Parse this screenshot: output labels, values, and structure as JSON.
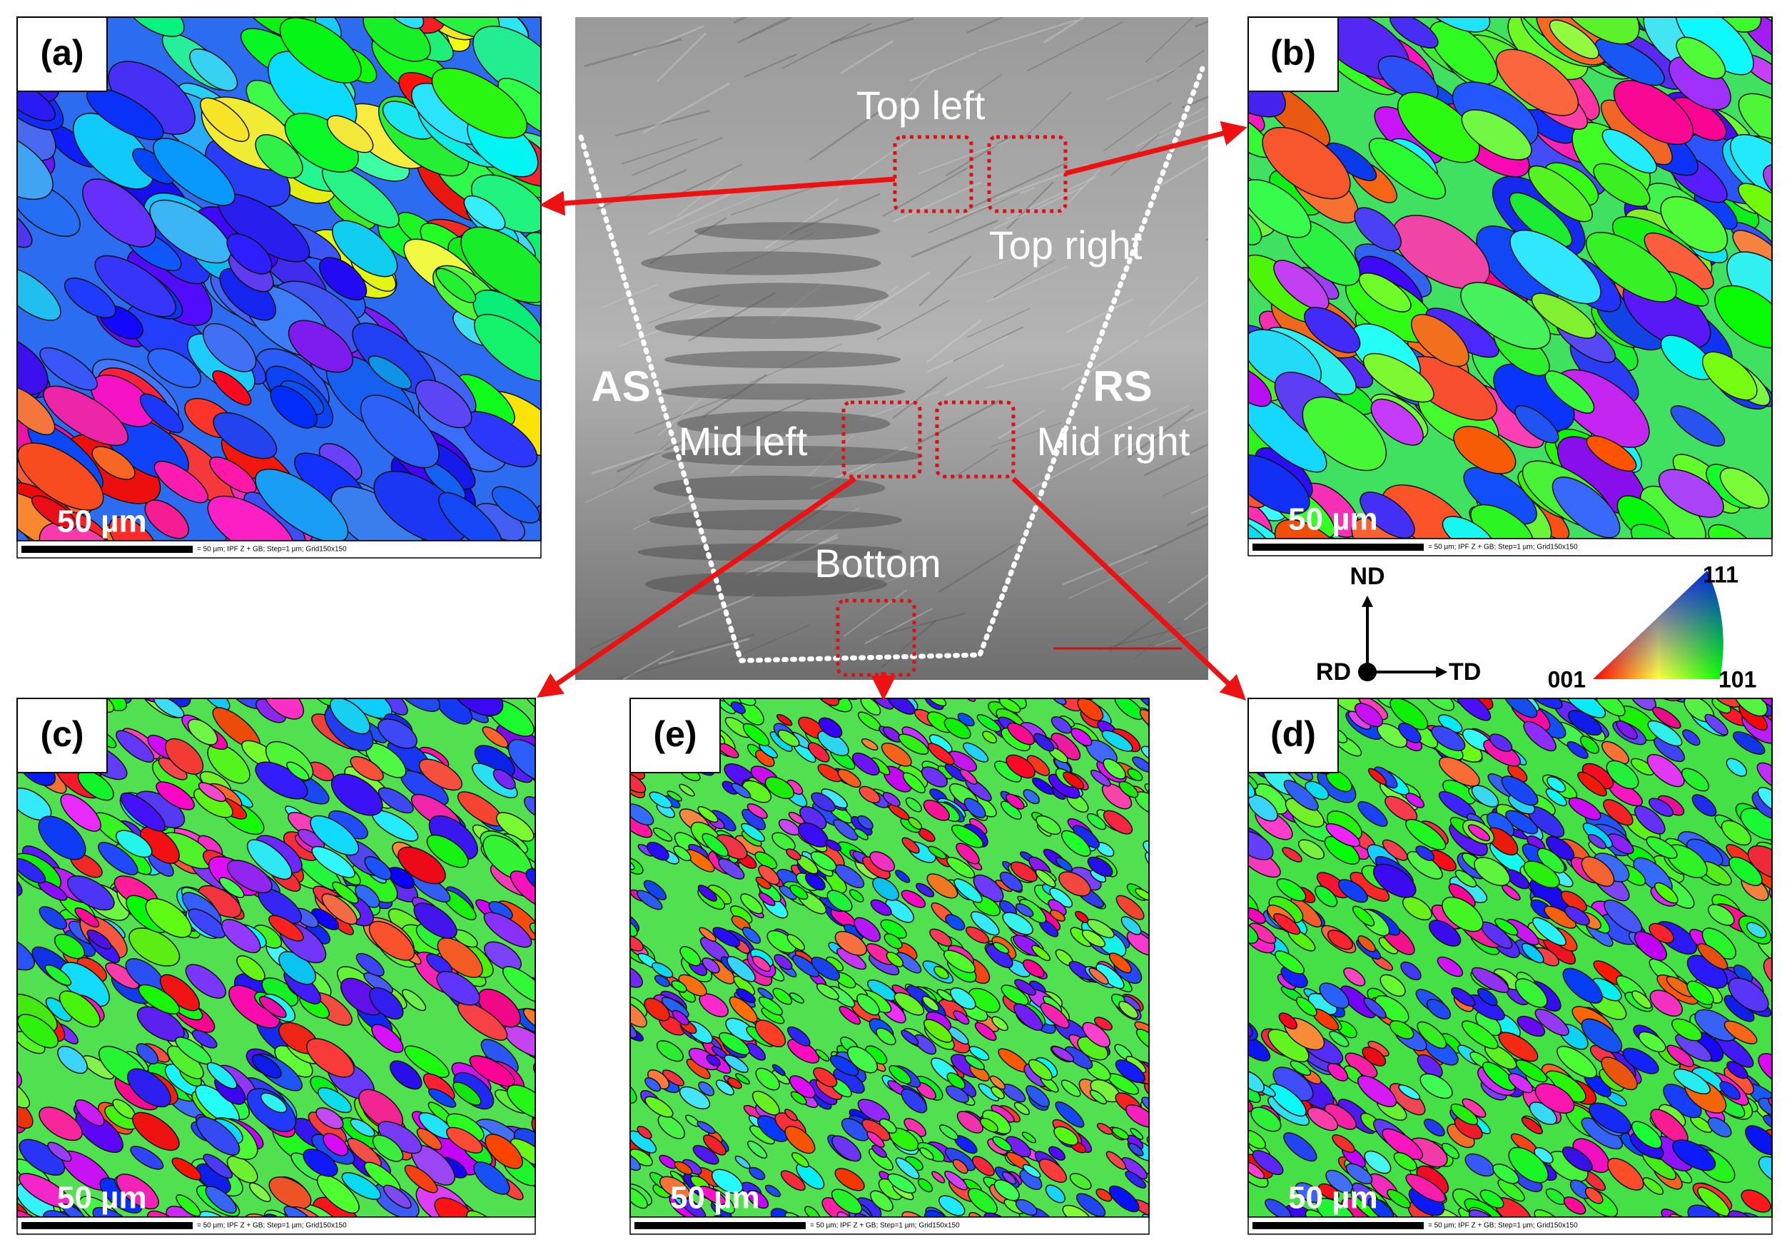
{
  "panels": [
    {
      "label": "(a)",
      "scale": "50 µm",
      "caption": "= 50 µm; IPF Z + GB; Step=1 µm; Grid150x150"
    },
    {
      "label": "(b)",
      "scale": "50 µm",
      "caption": "= 50 µm; IPF Z + GB; Step=1 µm; Grid150x150"
    },
    {
      "label": "(c)",
      "scale": "50 µm",
      "caption": "= 50 µm; IPF Z + GB; Step=1 µm; Grid150x150"
    },
    {
      "label": "(d)",
      "scale": "50 µm",
      "caption": "= 50 µm; IPF Z + GB; Step=1 µm; Grid150x150"
    },
    {
      "label": "(e)",
      "scale": "50 µm",
      "caption": "= 50 µm; IPF Z + GB; Step=1 µm; Grid150x150"
    }
  ],
  "center": {
    "top_left": "Top left",
    "top_right": "Top right",
    "as": "AS",
    "rs": "RS",
    "mid_left": "Mid left",
    "mid_right": "Mid right",
    "bottom": "Bottom"
  },
  "legend": {
    "nd": "ND",
    "rd": "RD",
    "td": "TD",
    "c001": "001",
    "c111": "111",
    "c101": "101"
  }
}
